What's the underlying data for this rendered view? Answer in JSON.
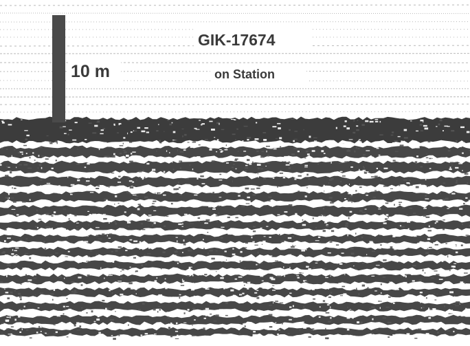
{
  "labels": {
    "station_id": "GIK-17674",
    "station_note": "on Station",
    "scale": "10 m"
  }
}
